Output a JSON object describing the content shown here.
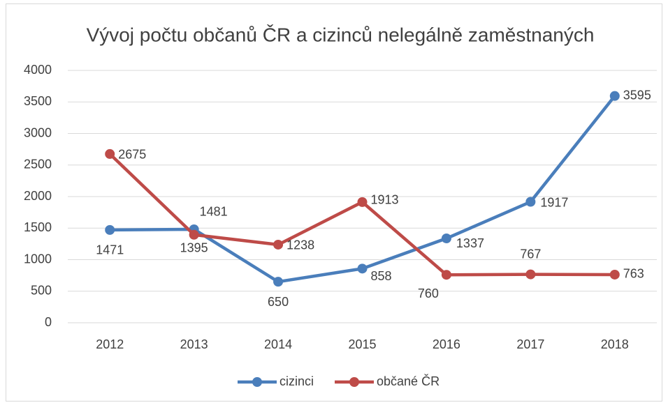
{
  "chart_data": {
    "type": "line",
    "title": "Vývoj počtu občanů ČR a cizinců nelegálně zaměstnaných",
    "categories": [
      "2012",
      "2013",
      "2014",
      "2015",
      "2016",
      "2017",
      "2018"
    ],
    "series": [
      {
        "name": "cizinci",
        "color": "#4a7ebb",
        "values": [
          1471,
          1481,
          650,
          858,
          1337,
          1917,
          3595
        ]
      },
      {
        "name": "občané ČR",
        "color": "#be4b48",
        "values": [
          2675,
          1395,
          1238,
          1913,
          760,
          767,
          763
        ]
      }
    ],
    "ylim": [
      0,
      4000
    ],
    "yticks": [
      0,
      500,
      1000,
      1500,
      2000,
      2500,
      3000,
      3500,
      4000
    ],
    "grid": true,
    "legend": "bottom"
  }
}
